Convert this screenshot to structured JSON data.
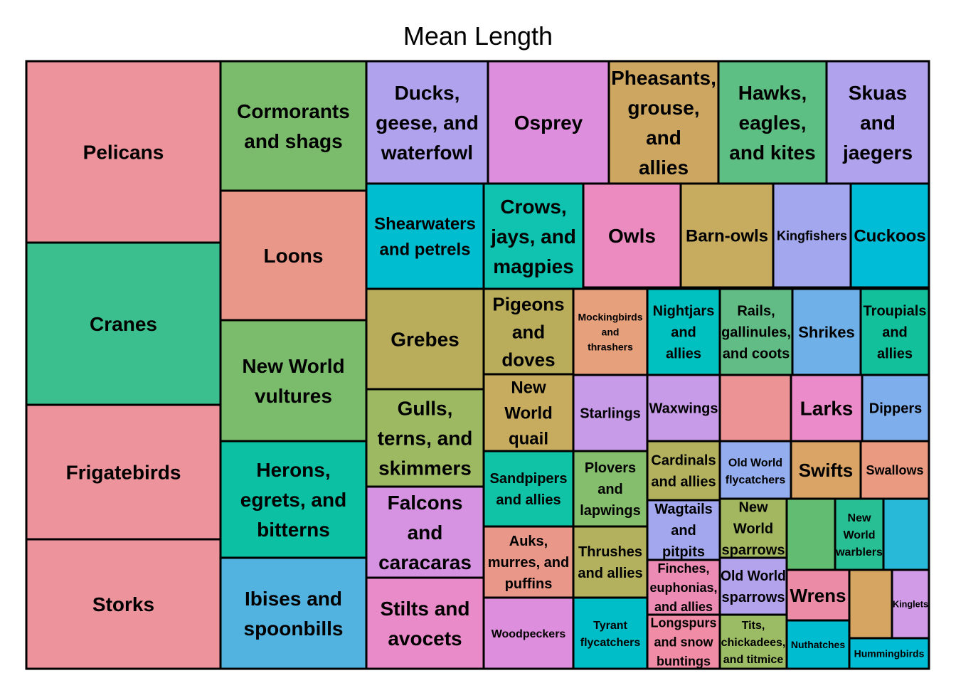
{
  "chart_data": {
    "type": "treemap",
    "title": "Mean Length",
    "tiles": [
      {
        "label": "Pelicans",
        "color": "#EC939C"
      },
      {
        "label": "Cranes",
        "color": "#3BBF8E"
      },
      {
        "label": "Frigatebirds",
        "color": "#EC939C"
      },
      {
        "label": "Storks",
        "color": "#EC939C"
      },
      {
        "label": "Cormorants and shags",
        "color": "#7BBB6C"
      },
      {
        "label": "Loons",
        "color": "#E99788"
      },
      {
        "label": "New World vultures",
        "color": "#7BBB6C"
      },
      {
        "label": "Herons, egrets, and bitterns",
        "color": "#0CC0A3"
      },
      {
        "label": "Ibises and spoonbills",
        "color": "#52B3E0"
      },
      {
        "label": "Ducks, geese, and waterfowl",
        "color": "#B0A2EC"
      },
      {
        "label": "Osprey",
        "color": "#DD8FDD"
      },
      {
        "label": "Pheasants, grouse, and allies",
        "color": "#CDA762"
      },
      {
        "label": "Hawks, eagles, and kites",
        "color": "#5EBF84"
      },
      {
        "label": "Skuas and jaegers",
        "color": "#B0A2EC"
      },
      {
        "label": "Shearwaters and petrels",
        "color": "#00BDD0"
      },
      {
        "label": "Crows, jays, and magpies",
        "color": "#10C2B0"
      },
      {
        "label": "Owls",
        "color": "#EC8BC0"
      },
      {
        "label": "Barn-owls",
        "color": "#C7AB5F"
      },
      {
        "label": "Kingfishers",
        "color": "#A3A8EE"
      },
      {
        "label": "Cuckoos",
        "color": "#00BCD6"
      },
      {
        "label": "Grebes",
        "color": "#B9AD5B"
      },
      {
        "label": "Gulls, terns, and skimmers",
        "color": "#9DBA63"
      },
      {
        "label": "Falcons and caracaras",
        "color": "#D693E2"
      },
      {
        "label": "Stilts and avocets",
        "color": "#E98BC9"
      },
      {
        "label": "Pigeons and doves",
        "color": "#B9AD5B"
      },
      {
        "label": "New World quail",
        "color": "#C7AB5F"
      },
      {
        "label": "Sandpipers and allies",
        "color": "#10C2A6"
      },
      {
        "label": "Auks, murres, and puffins",
        "color": "#E99788"
      },
      {
        "label": "Woodpeckers",
        "color": "#DD8FDD"
      },
      {
        "label": "Mockingbirds and thrashers",
        "color": "#E6A07B"
      },
      {
        "label": "Nightjars and allies",
        "color": "#00C0C0"
      },
      {
        "label": "Rails, gallinules, and coots",
        "color": "#62BC86"
      },
      {
        "label": "Shrikes",
        "color": "#6FB0E8"
      },
      {
        "label": "Troupials and allies",
        "color": "#12C19C"
      },
      {
        "label": "Starlings",
        "color": "#C79BE8"
      },
      {
        "label": "Waxwings",
        "color": "#C79BE8"
      },
      {
        "label": "",
        "color": "#EC9396"
      },
      {
        "label": "Larks",
        "color": "#EC8BC9"
      },
      {
        "label": "Dippers",
        "color": "#7FAEEC"
      },
      {
        "label": "Plovers and lapwings",
        "color": "#85BE6C"
      },
      {
        "label": "Cardinals and allies",
        "color": "#B3B05E"
      },
      {
        "label": "Old World flycatchers",
        "color": "#93ADEE"
      },
      {
        "label": "Swifts",
        "color": "#D9A465"
      },
      {
        "label": "Swallows",
        "color": "#E99A80"
      },
      {
        "label": "Thrushes and allies",
        "color": "#B3B05E"
      },
      {
        "label": "Wagtails and pitpits",
        "color": "#A3A8EE"
      },
      {
        "label": "New World sparrows",
        "color": "#A2B760"
      },
      {
        "label": "",
        "color": "#62BC72"
      },
      {
        "label": "New World warblers",
        "color": "#28BF95"
      },
      {
        "label": "",
        "color": "#28B8D8"
      },
      {
        "label": "Finches, euphonias, and allies",
        "color": "#EC8BB4"
      },
      {
        "label": "Old World sparrows",
        "color": "#B3A2EC"
      },
      {
        "label": "Wrens",
        "color": "#EC8BA6"
      },
      {
        "label": "",
        "color": "#D6A561"
      },
      {
        "label": "Kinglets",
        "color": "#D29BE8"
      },
      {
        "label": "Tyrant flycatchers",
        "color": "#00BEC8"
      },
      {
        "label": "Longspurs and snow buntings",
        "color": "#F08CA6"
      },
      {
        "label": "Tits, chickadees, and titmice",
        "color": "#9BBC64"
      },
      {
        "label": "Nuthatches",
        "color": "#00BCD0"
      },
      {
        "label": "Hummingbirds",
        "color": "#00BCD4"
      }
    ]
  }
}
